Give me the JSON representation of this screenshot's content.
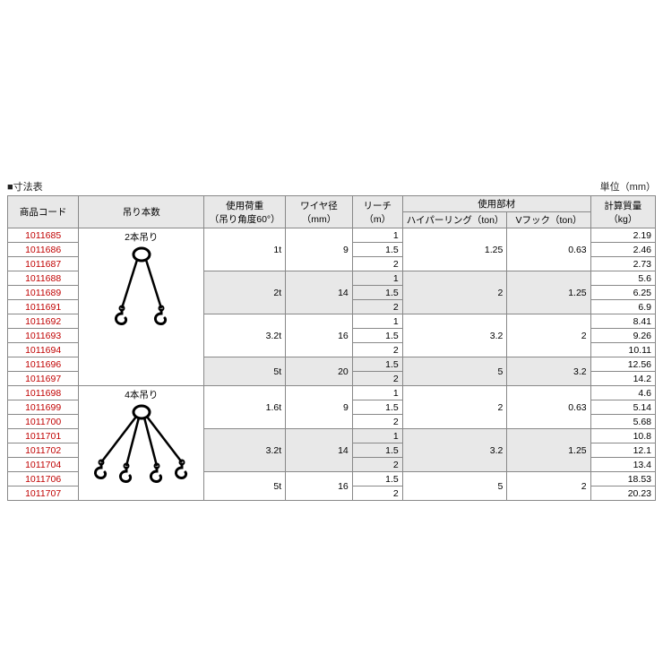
{
  "title": "■寸法表",
  "unit_label": "単位（mm）",
  "colors": {
    "header_bg": "#e8e8e8",
    "border": "#888888",
    "code_text": "#c00000",
    "text": "#222222",
    "bg": "#ffffff"
  },
  "fonts": {
    "body_size_pt": 10.5,
    "title_size_pt": 11
  },
  "header": {
    "product_code": "商品コード",
    "sling_count": "吊り本数",
    "working_load": "使用荷重",
    "working_load_sub": "（吊り角度60°）",
    "wire_dia": "ワイヤ径",
    "wire_dia_unit": "（mm）",
    "reach": "リーチ",
    "reach_unit": "（m）",
    "components": "使用部材",
    "hyper_ring": "ハイパーリング（ton）",
    "v_hook": "Vフック（ton）",
    "calc_mass": "計算質量",
    "calc_mass_unit": "（kg）"
  },
  "type_labels": {
    "two": "2本吊り",
    "four": "4本吊り"
  },
  "groups": [
    {
      "type": "two",
      "subgroups": [
        {
          "load": "1t",
          "dia": "9",
          "ring": "1.25",
          "hook": "0.63",
          "rows": [
            {
              "code": "1011685",
              "reach": "1",
              "mass": "2.19"
            },
            {
              "code": "1011686",
              "reach": "1.5",
              "mass": "2.46"
            },
            {
              "code": "1011687",
              "reach": "2",
              "mass": "2.73"
            }
          ],
          "shade": false
        },
        {
          "load": "2t",
          "dia": "14",
          "ring": "2",
          "hook": "1.25",
          "rows": [
            {
              "code": "1011688",
              "reach": "1",
              "mass": "5.6"
            },
            {
              "code": "1011689",
              "reach": "1.5",
              "mass": "6.25"
            },
            {
              "code": "1011691",
              "reach": "2",
              "mass": "6.9"
            }
          ],
          "shade": true
        },
        {
          "load": "3.2t",
          "dia": "16",
          "ring": "3.2",
          "hook": "2",
          "rows": [
            {
              "code": "1011692",
              "reach": "1",
              "mass": "8.41"
            },
            {
              "code": "1011693",
              "reach": "1.5",
              "mass": "9.26"
            },
            {
              "code": "1011694",
              "reach": "2",
              "mass": "10.11"
            }
          ],
          "shade": false
        },
        {
          "load": "5t",
          "dia": "20",
          "ring": "5",
          "hook": "3.2",
          "rows": [
            {
              "code": "1011696",
              "reach": "1.5",
              "mass": "12.56"
            },
            {
              "code": "1011697",
              "reach": "2",
              "mass": "14.2"
            }
          ],
          "shade": true
        }
      ]
    },
    {
      "type": "four",
      "subgroups": [
        {
          "load": "1.6t",
          "dia": "9",
          "ring": "2",
          "hook": "0.63",
          "rows": [
            {
              "code": "1011698",
              "reach": "1",
              "mass": "4.6"
            },
            {
              "code": "1011699",
              "reach": "1.5",
              "mass": "5.14"
            },
            {
              "code": "1011700",
              "reach": "2",
              "mass": "5.68"
            }
          ],
          "shade": false
        },
        {
          "load": "3.2t",
          "dia": "14",
          "ring": "3.2",
          "hook": "1.25",
          "rows": [
            {
              "code": "1011701",
              "reach": "1",
              "mass": "10.8"
            },
            {
              "code": "1011702",
              "reach": "1.5",
              "mass": "12.1"
            },
            {
              "code": "1011704",
              "reach": "2",
              "mass": "13.4"
            }
          ],
          "shade": true
        },
        {
          "load": "5t",
          "dia": "16",
          "ring": "5",
          "hook": "2",
          "rows": [
            {
              "code": "1011706",
              "reach": "1.5",
              "mass": "18.53"
            },
            {
              "code": "1011707",
              "reach": "2",
              "mass": "20.23"
            }
          ],
          "shade": false
        }
      ]
    }
  ]
}
